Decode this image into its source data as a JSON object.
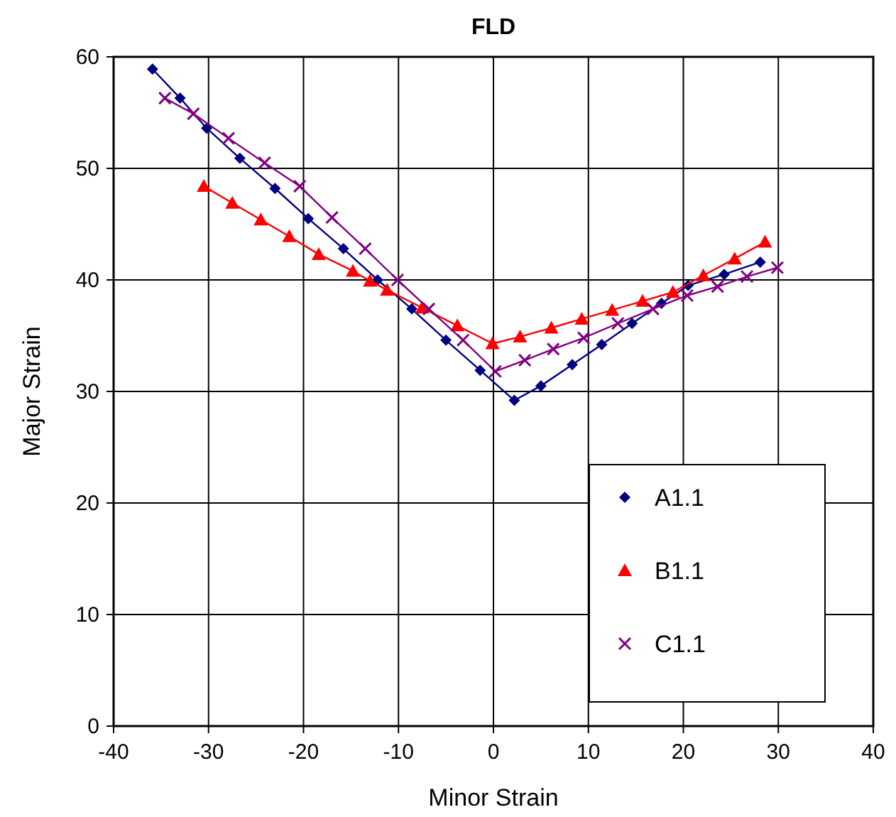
{
  "chart_data": {
    "type": "line",
    "title": "FLD",
    "xlabel": "Minor Strain",
    "ylabel": "Major Strain",
    "xlim": [
      -40,
      40
    ],
    "xticks": [
      -40,
      -30,
      -20,
      -10,
      0,
      10,
      20,
      30,
      40
    ],
    "ylim": [
      0,
      60
    ],
    "yticks": [
      0,
      10,
      20,
      30,
      40,
      50,
      60
    ],
    "grid": true,
    "legend": "bottom right",
    "line_style": "solid",
    "series": [
      {
        "name": "A1.1",
        "color": "#000080",
        "marker": "diamond",
        "x": [
          -35.9,
          -33.0,
          -30.2,
          -26.7,
          -23.0,
          -19.5,
          -15.8,
          -12.2,
          -8.6,
          -5.0,
          -1.4,
          2.2,
          5.0,
          8.3,
          11.4,
          14.6,
          17.7,
          20.5,
          24.3,
          28.1
        ],
        "values": [
          58.9,
          56.3,
          53.6,
          50.9,
          48.2,
          45.5,
          42.8,
          40.0,
          37.4,
          34.6,
          31.9,
          29.2,
          30.5,
          32.4,
          34.2,
          36.1,
          37.9,
          39.5,
          40.5,
          41.6
        ]
      },
      {
        "name": "B1.1",
        "color": "#ff0000",
        "marker": "triangle",
        "x": [
          -30.5,
          -27.5,
          -24.5,
          -21.5,
          -18.4,
          -14.8,
          -13.0,
          -11.2,
          -7.5,
          -3.8,
          -0.1,
          2.8,
          6.1,
          9.3,
          12.5,
          15.7,
          18.9,
          22.1,
          25.4,
          28.6
        ],
        "values": [
          48.4,
          46.9,
          45.4,
          43.9,
          42.3,
          40.8,
          39.9,
          39.1,
          37.5,
          35.9,
          34.3,
          34.9,
          35.7,
          36.5,
          37.3,
          38.1,
          38.9,
          40.4,
          41.9,
          43.4
        ]
      },
      {
        "name": "C1.1",
        "color": "#800080",
        "marker": "cross",
        "x": [
          -34.6,
          -31.6,
          -27.9,
          -24.1,
          -20.4,
          -17.0,
          -13.5,
          -10.1,
          -6.8,
          -3.2,
          0.2,
          3.3,
          6.3,
          9.5,
          13.1,
          16.8,
          20.4,
          23.6,
          26.7,
          29.9
        ],
        "values": [
          56.3,
          54.9,
          52.7,
          50.5,
          48.4,
          45.6,
          42.8,
          40.0,
          37.4,
          34.6,
          31.8,
          32.8,
          33.8,
          34.8,
          36.1,
          37.4,
          38.6,
          39.4,
          40.3,
          41.1
        ]
      }
    ]
  }
}
